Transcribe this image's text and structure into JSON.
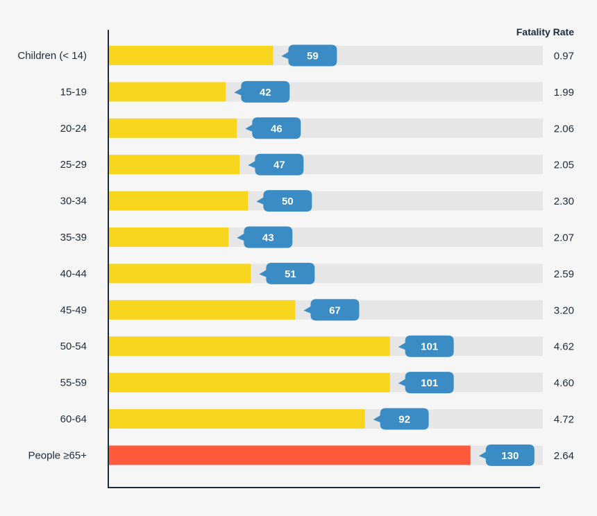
{
  "chart_data": {
    "type": "bar",
    "orientation": "horizontal",
    "categories": [
      "Children (< 14)",
      "15-19",
      "20-24",
      "25-29",
      "30-34",
      "35-39",
      "40-44",
      "45-49",
      "50-54",
      "55-59",
      "60-64",
      "People ≥65+"
    ],
    "values": [
      59,
      42,
      46,
      47,
      50,
      43,
      51,
      67,
      101,
      101,
      92,
      130
    ],
    "fatality_rate_header": "Fatality Rate",
    "fatality_rates": [
      "0.97",
      "1.99",
      "2.06",
      "2.05",
      "2.30",
      "2.07",
      "2.59",
      "3.20",
      "4.62",
      "4.60",
      "4.72",
      "2.64"
    ],
    "xlim": [
      0,
      156
    ],
    "colors": {
      "bar": "#f8d61e",
      "highlight_bar": "#ff5a3c",
      "track": "#e6e6e6",
      "bubble": "#3b8bc4",
      "axis": "#1c2a3a"
    },
    "highlight_index": 11
  }
}
